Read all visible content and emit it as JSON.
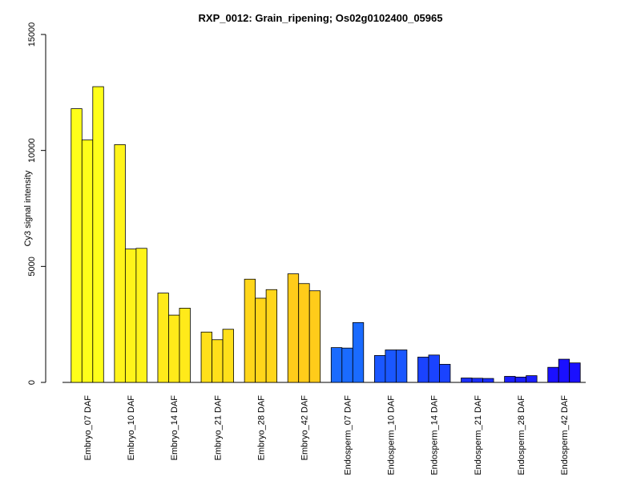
{
  "chart_data": {
    "type": "bar",
    "title": "RXP_0012: Grain_ripening; Os02g0102400_05965",
    "xlabel": "",
    "ylabel": "Cy3 signal intensity",
    "ylim": [
      0,
      15000
    ],
    "yticks": [
      0,
      5000,
      10000,
      15000
    ],
    "grid": false,
    "categories": [
      "Embryo_07 DAF",
      "Embryo_10 DAF",
      "Embryo_14 DAF",
      "Embryo_21 DAF",
      "Embryo_28 DAF",
      "Embryo_42 DAF",
      "Endosperm_07 DAF",
      "Endosperm_10 DAF",
      "Endosperm_14 DAF",
      "Endosperm_21 DAF",
      "Endosperm_28 DAF",
      "Endosperm_42 DAF"
    ],
    "bar_values": [
      [
        11800,
        10450,
        12750
      ],
      [
        10250,
        5750,
        5780
      ],
      [
        3850,
        2900,
        3200
      ],
      [
        2170,
        1840,
        2290
      ],
      [
        4450,
        3630,
        4000
      ],
      [
        4680,
        4260,
        3950
      ],
      [
        1500,
        1480,
        2580
      ],
      [
        1160,
        1400,
        1400
      ],
      [
        1090,
        1180,
        780
      ],
      [
        190,
        180,
        170
      ],
      [
        260,
        230,
        290
      ],
      [
        650,
        1000,
        840
      ]
    ],
    "colors": [
      "#FFFF1A",
      "#FFF41A",
      "#FFEA1A",
      "#FFE01A",
      "#FFD61A",
      "#FFCC1A",
      "#1A6BFF",
      "#1A57FF",
      "#1A43FF",
      "#1A2FFF",
      "#1A1FFF",
      "#1A10FF"
    ]
  }
}
